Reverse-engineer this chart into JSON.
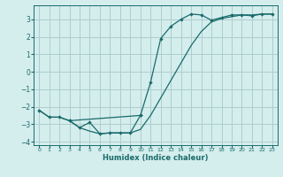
{
  "xlabel": "Humidex (Indice chaleur)",
  "bg_color": "#d4eded",
  "grid_color": "#aecece",
  "line_color": "#1a6b6b",
  "xlim": [
    -0.5,
    23.5
  ],
  "ylim": [
    -4.2,
    3.8
  ],
  "yticks": [
    -4,
    -3,
    -2,
    -1,
    0,
    1,
    2,
    3
  ],
  "xticks": [
    0,
    1,
    2,
    3,
    4,
    5,
    6,
    7,
    8,
    9,
    10,
    11,
    12,
    13,
    14,
    15,
    16,
    17,
    18,
    19,
    20,
    21,
    22,
    23
  ],
  "series1_x": [
    0,
    1,
    2,
    3,
    10,
    11,
    12,
    13,
    14,
    15,
    16,
    17,
    18,
    19,
    20,
    21,
    22,
    23
  ],
  "series1_y": [
    -2.2,
    -2.6,
    -2.6,
    -2.8,
    -2.5,
    -0.6,
    1.9,
    2.6,
    3.0,
    3.3,
    3.25,
    2.95,
    3.1,
    3.25,
    3.25,
    3.2,
    3.3,
    3.3
  ],
  "series2_x": [
    0,
    1,
    2,
    3,
    4,
    5,
    6,
    7,
    8,
    9,
    10,
    11,
    12,
    13,
    14,
    15,
    16,
    17,
    18,
    19,
    20,
    21,
    22,
    23
  ],
  "series2_y": [
    -2.2,
    -2.6,
    -2.6,
    -2.8,
    -3.2,
    -3.4,
    -3.55,
    -3.5,
    -3.5,
    -3.5,
    -3.3,
    -2.5,
    -1.5,
    -0.5,
    0.5,
    1.5,
    2.3,
    2.85,
    3.05,
    3.15,
    3.25,
    3.25,
    3.3,
    3.3
  ],
  "series3_x": [
    3,
    4,
    5,
    6,
    7,
    8,
    9,
    10
  ],
  "series3_y": [
    -2.8,
    -3.2,
    -2.9,
    -3.55,
    -3.5,
    -3.5,
    -3.5,
    -2.5
  ]
}
